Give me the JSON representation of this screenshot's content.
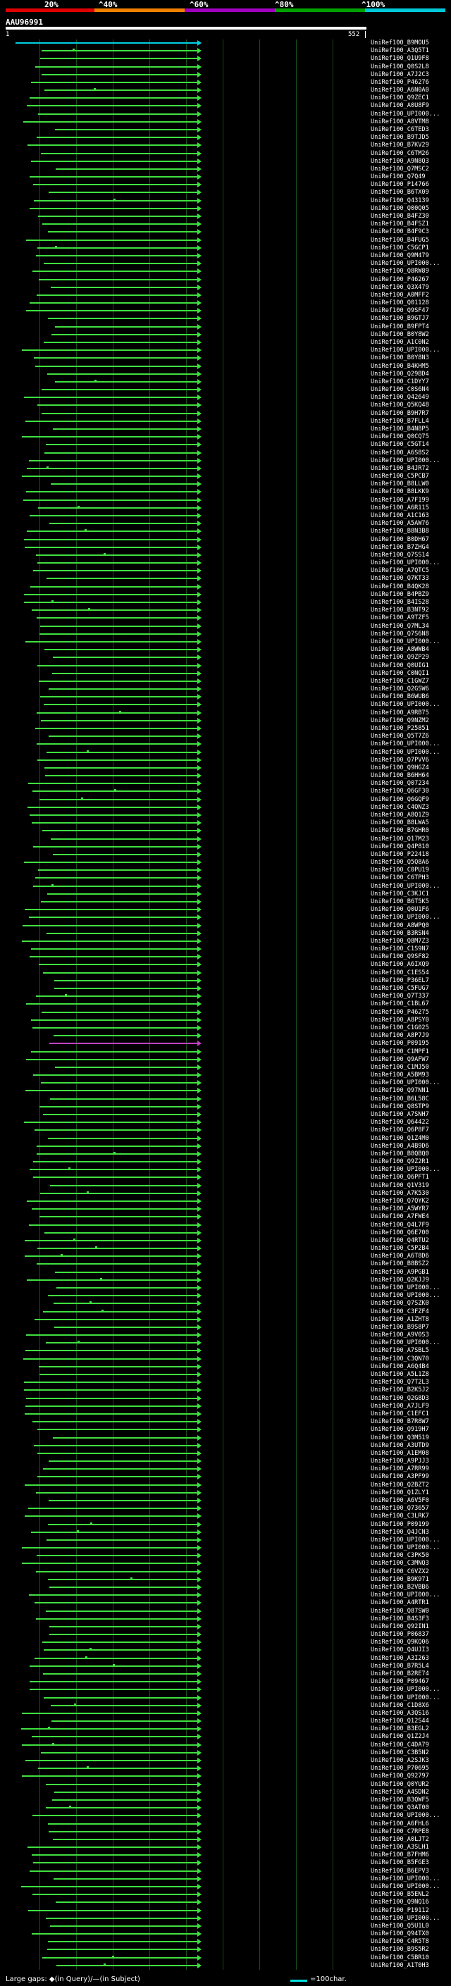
{
  "scale": {
    "labels": [
      "20%",
      "^40%",
      "^60%",
      "^80%",
      "^100%"
    ],
    "colors": [
      "#e00000",
      "#f08000",
      "#a000c0",
      "#00a000",
      "#00c8d8"
    ]
  },
  "query": {
    "id": "AAU96991",
    "start": "1",
    "end": "552"
  },
  "legend": {
    "gaps": "Large gaps: ◆(in Query)/—(in Subject)",
    "scale": "=100char."
  },
  "colors": {
    "background": "#000000",
    "hit": "#40e040",
    "top_hit": "#00d0e0",
    "magenta_hit": "#c040c0",
    "grid": "#1a4d1a"
  },
  "hits": [
    "UniRef100_B9MOU5",
    "UniRef100_A3Q5T1",
    "UniRef100_Q1U9F8",
    "UniRef100_Q0S2L8",
    "UniRef100_A7J2C3",
    "UniRef100_P46276",
    "UniRef100_A6N0A0",
    "UniRef100_Q9ZEC1",
    "UniRef100_A0U8F9",
    "UniRef100_UPI000...",
    "UniRef100_A8VTM8",
    "UniRef100_C6TED3",
    "UniRef100_B9TJD5",
    "UniRef100_B7KV29",
    "UniRef100_C6TM26",
    "UniRef100_A9N8Q3",
    "UniRef100_Q7MSC2",
    "UniRef100_Q7Q49",
    "UniRef100_P14766",
    "UniRef100_B6TX09",
    "UniRef100_Q43139",
    "UniRef100_Q00Q05",
    "UniRef100_B4FZ30",
    "UniRef100_B4FSZ1",
    "UniRef100_B4F9C3",
    "UniRef100_B4FUG5",
    "UniRef100_C5GCP1",
    "UniRef100_Q9M479",
    "UniRef100_UPI000...",
    "UniRef100_Q8RW89",
    "UniRef100_P46267",
    "UniRef100_Q3X479",
    "UniRef100_A0MFF2",
    "UniRef100_Q01128",
    "UniRef100_Q9SF47",
    "UniRef100_B9GTJ7",
    "UniRef100_B9FPT4",
    "UniRef100_B0Y8W2",
    "UniRef100_A1C0N2",
    "UniRef100_UPI000...",
    "UniRef100_B0Y8N3",
    "UniRef100_B4KHM5",
    "UniRef100_Q29BD4",
    "UniRef100_C1DYY7",
    "UniRef100_C0S6N4",
    "UniRef100_Q42649",
    "UniRef100_Q5KQ48",
    "UniRef100_B9H7R7",
    "UniRef100_B7FLL4",
    "UniRef100_B4N8P5",
    "UniRef100_Q0CQ75",
    "UniRef100_C5GT14",
    "UniRef100_A6S8S2",
    "UniRef100_UPI000...",
    "UniRef100_B4JR72",
    "UniRef100_C5PCB7",
    "UniRef100_B8LLW0",
    "UniRef100_B8LKK9",
    "UniRef100_A7F199",
    "UniRef100_A6R115",
    "UniRef100_A1C163",
    "UniRef100_A5AW76",
    "UniRef100_B8N3B8",
    "UniRef100_B0DH67",
    "UniRef100_B7ZHG4",
    "UniRef100_Q7SS14",
    "UniRef100_UPI000...",
    "UniRef100_A7QTC5",
    "UniRef100_Q7KT33",
    "UniRef100_B4QK28",
    "UniRef100_B4PBZ9",
    "UniRef100_B4IS28",
    "UniRef100_B3NT92",
    "UniRef100_A9TZF5",
    "UniRef100_Q7ML34",
    "UniRef100_Q7S6N8",
    "UniRef100_UPI000...",
    "UniRef100_A8WWB4",
    "UniRef100_Q9ZP29",
    "UniRef100_Q0UIG1",
    "UniRef100_C0NQI1",
    "UniRef100_C1GWZ7",
    "UniRef100_Q2GSW6",
    "UniRef100_B6WUB6",
    "UniRef100_UPI000...",
    "UniRef100_A9RB75",
    "UniRef100_Q9NZM2",
    "UniRef100_P25851",
    "UniRef100_Q5T7Z6",
    "UniRef100_UPI000...",
    "UniRef100_UPI000...",
    "UniRef100_Q7PVV6",
    "UniRef100_Q9HGZ4",
    "UniRef100_B6HH64",
    "UniRef100_Q07234",
    "UniRef100_Q6GF30",
    "UniRef100_Q6GQF9",
    "UniRef100_C4QNZ3",
    "UniRef100_A8Q1Z9",
    "UniRef100_B8LWA5",
    "UniRef100_B7GHR0",
    "UniRef100_Q17M23",
    "UniRef100_Q4P810",
    "UniRef100_P22418",
    "UniRef100_Q5Q8A6",
    "UniRef100_C0PU19",
    "UniRef100_C6TPH3",
    "UniRef100_UPI000...",
    "UniRef100_C3KJC1",
    "UniRef100_B6T5K5",
    "UniRef100_Q0U1F6",
    "UniRef100_UPI000...",
    "UniRef100_A8WPQ0",
    "UniRef100_B3RSN4",
    "UniRef100_Q8M7Z3",
    "UniRef100_C1S9N7",
    "UniRef100_Q9SF82",
    "UniRef100_A6IXQ9",
    "UniRef100_C1ES54",
    "UniRef100_P36EL7",
    "UniRef100_C5FUG7",
    "UniRef100_Q7T337",
    "UniRef100_C1BL67",
    "UniRef100_P46275",
    "UniRef100_A8PSY0",
    "UniRef100_C1G025",
    "UniRef100_A8P7J9",
    "UniRef100_P09195",
    "UniRef100_C1MPF1",
    "UniRef100_Q9AFW7",
    "UniRef100_C1MJ50",
    "UniRef100_A5BM93",
    "UniRef100_UPI000...",
    "UniRef100_Q97NN1",
    "UniRef100_B6L58C",
    "UniRef100_Q8STP9",
    "UniRef100_A7SNH7",
    "UniRef100_Q64422",
    "UniRef100_Q6P8F7",
    "UniRef100_Q1Z4M0",
    "UniRef100_A4B9D6",
    "UniRef100_B8QBQ0",
    "UniRef100_Q9Z2R1",
    "UniRef100_UPI000...",
    "UniRef100_Q6PFT1",
    "UniRef100_Q1V319",
    "UniRef100_A7K530",
    "UniRef100_Q7QYK2",
    "UniRef100_A5WYR7",
    "UniRef100_A7FWE4",
    "UniRef100_Q4L7F9",
    "UniRef100_Q6E700",
    "UniRef100_Q4RTU2",
    "UniRef100_C5P2B4",
    "UniRef100_A6T8D6",
    "UniRef100_B8BSZ2",
    "UniRef100_A9PGB1",
    "UniRef100_Q2KJJ9",
    "UniRef100_UPI000...",
    "UniRef100_UPI000...",
    "UniRef100_Q7SZK0",
    "UniRef100_C3FZF4",
    "UniRef100_A1ZHT8",
    "UniRef100_B9S8P7",
    "UniRef100_A9V0S3",
    "UniRef100_UPI000...",
    "UniRef100_A7SBL5",
    "UniRef100_C3QN70",
    "UniRef100_A6Q4B4",
    "UniRef100_A5L1Z8",
    "UniRef100_Q7T2L3",
    "UniRef100_B2K5J2",
    "UniRef100_Q2G8D3",
    "UniRef100_A7JLF9",
    "UniRef100_C1EFC1",
    "UniRef100_B7R8W7",
    "UniRef100_Q919H7",
    "UniRef100_Q3M519",
    "UniRef100_A3UTD9",
    "UniRef100_A1EM08",
    "UniRef100_A9PJJ3",
    "UniRef100_A7RR99",
    "UniRef100_A3PF99",
    "UniRef100_Q2BZT2",
    "UniRef100_Q1ZLY1",
    "UniRef100_A6V5F0",
    "UniRef100_Q73657",
    "UniRef100_C3LRK7",
    "UniRef100_P09199",
    "UniRef100_Q4JCN3",
    "UniRef100_UPI000...",
    "UniRef100_UPI000...",
    "UniRef100_C3PK50",
    "UniRef100_C3MNQ3",
    "UniRef100_C6VZX2",
    "UniRef100_B9K971",
    "UniRef100_B2VBB6",
    "UniRef100_UPI000...",
    "UniRef100_A4RTR1",
    "UniRef100_Q87SW0",
    "UniRef100_B4S3F3",
    "UniRef100_Q92IN1",
    "UniRef100_P06837",
    "UniRef100_Q9KQ06",
    "UniRef100_Q4UJI3",
    "UniRef100_A3I263",
    "UniRef100_B7R5L4",
    "UniRef100_B2RE74",
    "UniRef100_P09467",
    "UniRef100_UPI000...",
    "UniRef100_UPI000...",
    "UniRef100_C1D8X6",
    "UniRef100_A3QS16",
    "UniRef100_Q12S44",
    "UniRef100_B3EGL2",
    "UniRef100_Q1Z2J4",
    "UniRef100_C4DA79",
    "UniRef100_C3B5N2",
    "UniRef100_A2SJK3",
    "UniRef100_P70695",
    "UniRef100_Q92797",
    "UniRef100_Q0YUR2",
    "UniRef100_A4SDN2",
    "UniRef100_B3QWF5",
    "UniRef100_Q3AT00",
    "UniRef100_UPI000...",
    "UniRef100_A6FHL6",
    "UniRef100_C7RPE8",
    "UniRef100_A0LJT2",
    "UniRef100_A3SLH1",
    "UniRef100_B7FHM6",
    "UniRef100_B5FGE3",
    "UniRef100_B6EPV3",
    "UniRef100_UPI000...",
    "UniRef100_UPI000...",
    "UniRef100_B5ENL2",
    "UniRef100_Q9NQ16",
    "UniRef100_P19112",
    "UniRef100_UPI000...",
    "UniRef100_Q5U1L0",
    "UniRef100_Q94TX0",
    "UniRef100_C4R5T8",
    "UniRef100_B9S5R2",
    "UniRef100_C5BR10",
    "UniRef100_A1T0H3"
  ]
}
